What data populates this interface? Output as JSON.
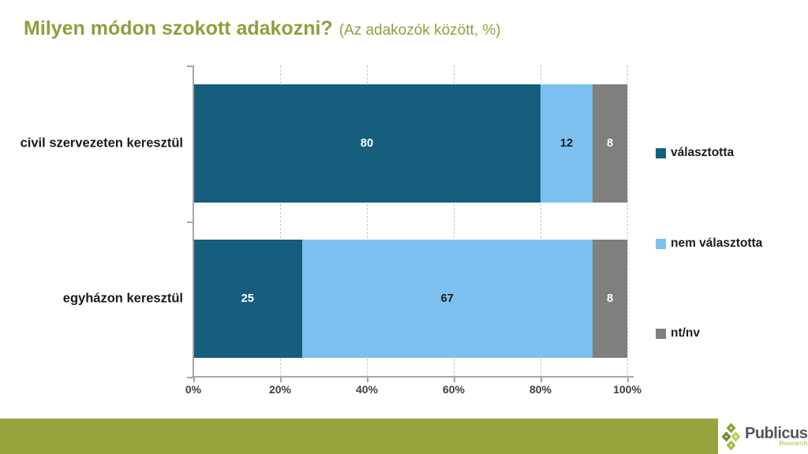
{
  "title": {
    "main": "Milyen módon szokott adakozni?",
    "sub": "(Az adakozók között, %)"
  },
  "chart_data": {
    "type": "bar",
    "orientation": "horizontal",
    "stacked": true,
    "title": "Milyen módon szokott adakozni? (Az adakozók között, %)",
    "categories": [
      "civil szervezeten keresztül",
      "egyházon keresztül"
    ],
    "series": [
      {
        "name": "választotta",
        "values": [
          80,
          25
        ],
        "color": "#155e7e",
        "label_color": "#ffffff"
      },
      {
        "name": "nem választotta",
        "values": [
          12,
          67
        ],
        "color": "#7cc0ef",
        "label_color": "#1a1a1a"
      },
      {
        "name": "nt/nv",
        "values": [
          8,
          8
        ],
        "color": "#7f7f7f",
        "label_color": "#ffffff"
      }
    ],
    "xlim": [
      0,
      100
    ],
    "x_ticks": [
      {
        "value": 0,
        "label": "0%"
      },
      {
        "value": 20,
        "label": "20%"
      },
      {
        "value": 40,
        "label": "40%"
      },
      {
        "value": 60,
        "label": "60%"
      },
      {
        "value": 80,
        "label": "80%"
      },
      {
        "value": 100,
        "label": "100%"
      }
    ],
    "grid": "dashed-vertical",
    "legend_position": "right"
  },
  "colors": {
    "title": "#8ca13c",
    "footer_bar": "#99a33e",
    "axis": "#a6a6a6",
    "grid": "#c6c6c6",
    "brand_name": "#55565b",
    "brand_sub": "#c2cf6a",
    "logo_diamonds": [
      "#85a636",
      "#6a8c31",
      "#b9d255",
      "#9dbf3f"
    ]
  },
  "footer": {
    "brand": "Publicus",
    "brand_sub": "Research"
  }
}
